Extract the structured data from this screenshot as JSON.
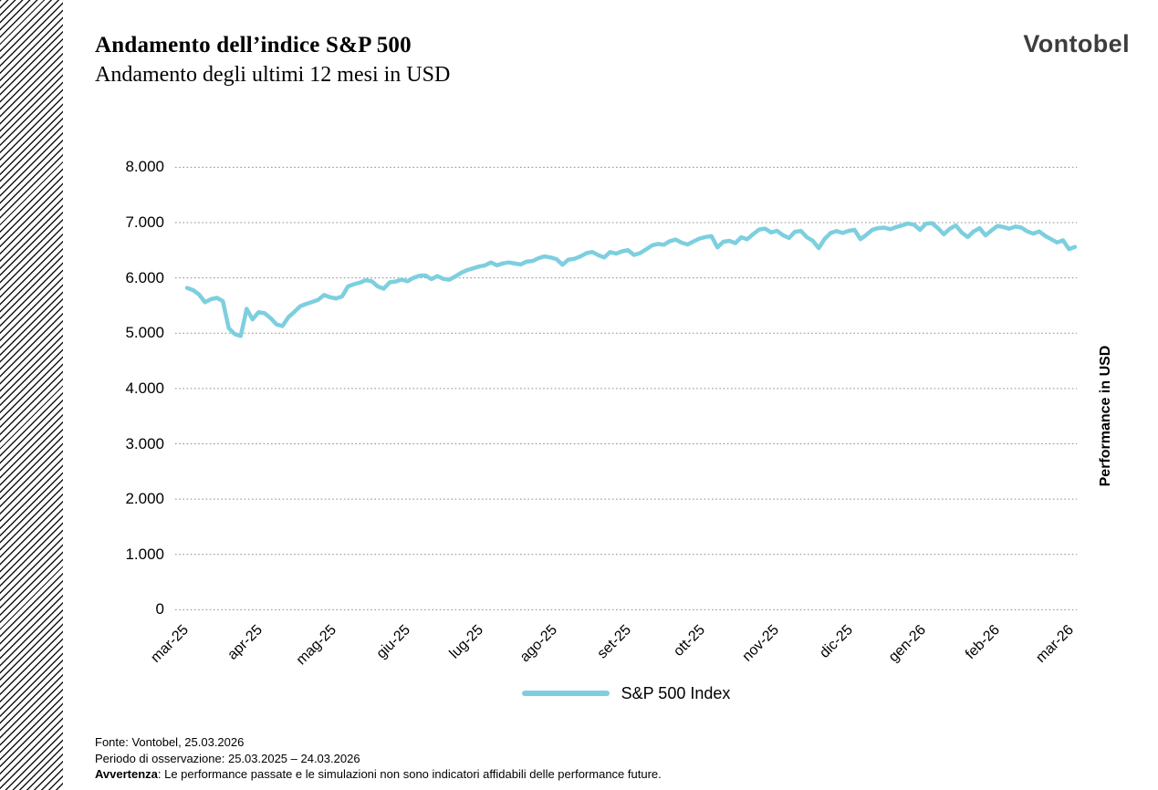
{
  "header": {
    "title": "Andamento dell’indice S&P 500",
    "subtitle": "Andamento degli ultimi 12 mesi in USD",
    "logo": "Vontobel"
  },
  "chart_data": {
    "type": "line",
    "title": "Andamento dell’indice S&P 500",
    "subtitle": "Andamento degli ultimi 12 mesi in USD",
    "x_tick_labels": [
      "mar-25",
      "apr-25",
      "mag-25",
      "giu-25",
      "lug-25",
      "ago-25",
      "set-25",
      "ott-25",
      "nov-25",
      "dic-25",
      "gen-26",
      "feb-26",
      "mar-26"
    ],
    "y_ticks": [
      0,
      1000,
      2000,
      3000,
      4000,
      5000,
      6000,
      7000,
      8000
    ],
    "y_tick_labels": [
      "0",
      "1.000",
      "2.000",
      "3.000",
      "4.000",
      "5.000",
      "6.000",
      "7.000",
      "8.000"
    ],
    "ylim": [
      0,
      8000
    ],
    "y_axis_right_label": "Performance in USD",
    "grid": "horizontal dotted",
    "legend_position": "bottom-center",
    "line_color": "#7DCFDF",
    "grid_color": "#8c8c8c",
    "series": [
      {
        "name": "S&P 500 Index",
        "color": "#7DCFDF",
        "values": [
          5820,
          5780,
          5700,
          5560,
          5615,
          5640,
          5580,
          5090,
          4985,
          4950,
          5440,
          5250,
          5380,
          5360,
          5275,
          5160,
          5130,
          5290,
          5385,
          5490,
          5530,
          5565,
          5605,
          5690,
          5650,
          5630,
          5665,
          5845,
          5885,
          5915,
          5960,
          5940,
          5845,
          5805,
          5920,
          5935,
          5970,
          5940,
          6000,
          6040,
          6045,
          5977,
          6033,
          5982,
          5968,
          6025,
          6092,
          6141,
          6173,
          6205,
          6227,
          6279,
          6229,
          6263,
          6280,
          6259,
          6244,
          6296,
          6306,
          6359,
          6389,
          6371,
          6339,
          6238,
          6330,
          6345,
          6389,
          6446,
          6469,
          6411,
          6370,
          6467,
          6439,
          6481,
          6502,
          6415,
          6448,
          6513,
          6587,
          6615,
          6600,
          6664,
          6693,
          6637,
          6604,
          6661,
          6711,
          6740,
          6754,
          6552,
          6654,
          6671,
          6629,
          6735,
          6699,
          6792,
          6875,
          6891,
          6822,
          6852,
          6772,
          6721,
          6833,
          6851,
          6737,
          6672,
          6538,
          6705,
          6813,
          6849,
          6812,
          6850,
          6870,
          6700,
          6780,
          6870,
          6900,
          6910,
          6880,
          6920,
          6950,
          6985,
          6960,
          6870,
          6980,
          6990,
          6900,
          6790,
          6890,
          6950,
          6820,
          6740,
          6840,
          6900,
          6770,
          6860,
          6940,
          6920,
          6890,
          6930,
          6910,
          6840,
          6800,
          6840,
          6760,
          6700,
          6640,
          6680,
          6520,
          6560
        ]
      }
    ]
  },
  "legend": {
    "label": "S&P 500 Index"
  },
  "footer": {
    "source": "Fonte: Vontobel, 25.03.2026",
    "period": "Periodo di osservazione: 25.03.2025 – 24.03.2026",
    "disclaimer_label": "Avvertenza",
    "disclaimer_text": ": Le performance passate e le simulazioni non sono indicatori affidabili delle performance future."
  }
}
